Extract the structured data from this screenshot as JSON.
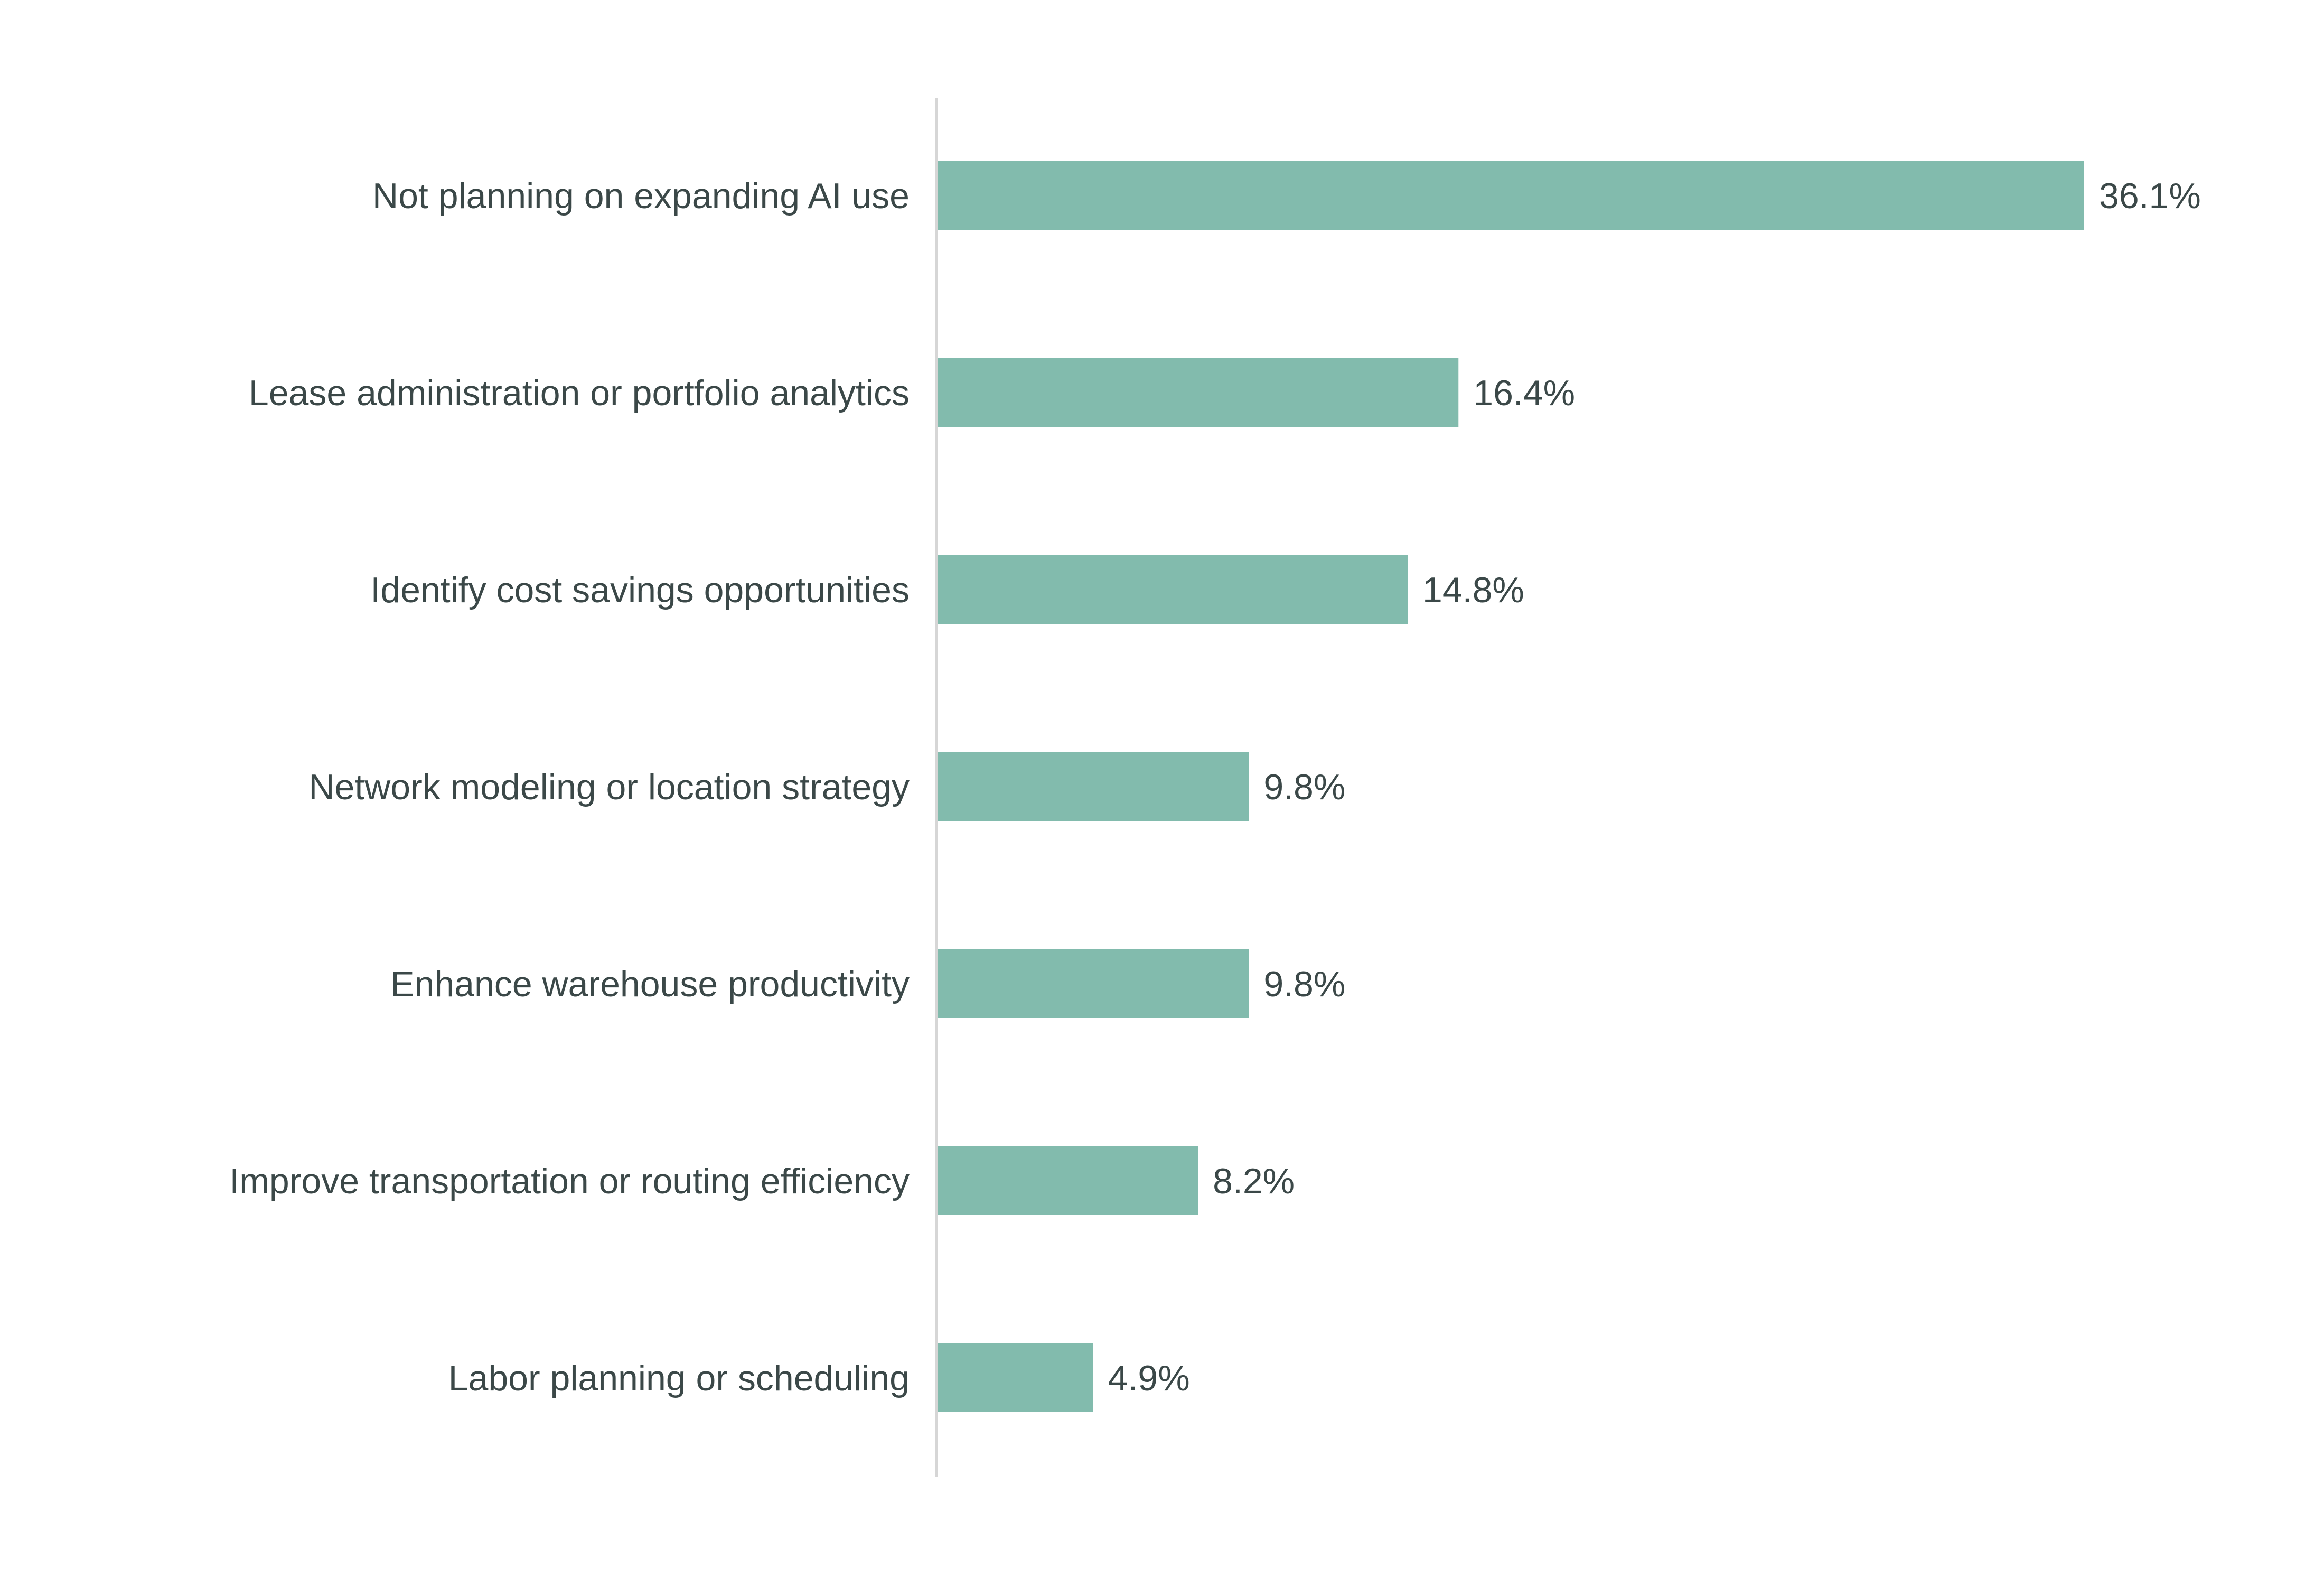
{
  "chart_data": {
    "type": "bar",
    "orientation": "horizontal",
    "categories": [
      "Not planning on expanding AI use",
      "Lease administration or portfolio analytics",
      "Identify cost savings opportunities",
      "Network modeling or location strategy",
      "Enhance warehouse productivity",
      "Improve transportation or routing efficiency",
      "Labor planning or scheduling"
    ],
    "values": [
      36.1,
      16.4,
      14.8,
      9.8,
      9.8,
      8.2,
      4.9
    ],
    "data_labels": [
      "36.1%",
      "16.4%",
      "14.8%",
      "9.8%",
      "9.8%",
      "8.2%",
      "4.9%"
    ],
    "title": "",
    "xlabel": "",
    "ylabel": "",
    "xlim": [
      0,
      36.1
    ],
    "grid": false,
    "legend": "none",
    "colors": {
      "bar": "#82bbad",
      "axis": "#d6d6d6",
      "text": "#3b4848"
    }
  }
}
